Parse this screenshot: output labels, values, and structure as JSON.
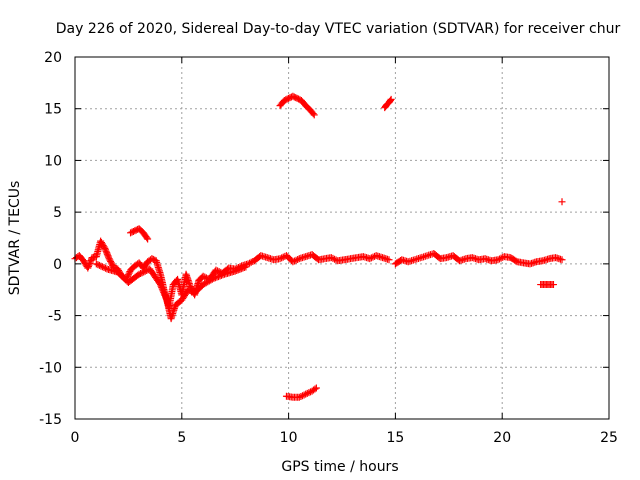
{
  "chart_data": {
    "type": "scatter",
    "title": "Day 226 of 2020, Sidereal Day-to-day VTEC variation (SDTVAR) for receiver chur",
    "xlabel": "GPS time / hours",
    "ylabel": "SDTVAR / TECUs",
    "xlim": [
      0,
      25
    ],
    "ylim": [
      -15,
      20
    ],
    "xticks": [
      0,
      5,
      10,
      15,
      20,
      25
    ],
    "yticks": [
      -15,
      -10,
      -5,
      0,
      5,
      10,
      15,
      20
    ],
    "xtick_labels": [
      "0",
      "5",
      "10",
      "15",
      "20",
      "25"
    ],
    "ytick_labels": [
      "-15",
      "-10",
      "-5",
      "0",
      "5",
      "10",
      "15",
      "20"
    ],
    "grid": true,
    "marker": "+",
    "color": "#ff0000",
    "series": [
      {
        "name": "main_track",
        "x": [
          0.0,
          0.2,
          0.4,
          0.6,
          0.8,
          1.0,
          1.2,
          1.4,
          1.6,
          1.8,
          2.0,
          2.2,
          2.4,
          2.6,
          2.8,
          3.0,
          3.2,
          3.4,
          3.6,
          3.8,
          4.0,
          4.2,
          4.4,
          4.6,
          4.8,
          5.0,
          5.2,
          5.4,
          5.6,
          5.8,
          6.0,
          6.3,
          6.6,
          6.9,
          7.2,
          7.5,
          7.8,
          8.1,
          8.4,
          8.7,
          9.0,
          9.3,
          9.6,
          9.9,
          10.2,
          10.5,
          10.8,
          11.1,
          11.4,
          11.7,
          12.0,
          12.3,
          12.6,
          12.9,
          13.2,
          13.5,
          13.8,
          14.1,
          14.4,
          14.7
        ],
        "y": [
          0.5,
          0.8,
          0.3,
          -0.4,
          0.6,
          0.7,
          2.2,
          1.5,
          0.5,
          -0.3,
          -0.5,
          -1.2,
          -1.5,
          -0.6,
          -0.2,
          0.1,
          -0.4,
          0.2,
          0.5,
          0.3,
          -1.0,
          -2.8,
          -4.2,
          -2.0,
          -1.5,
          -3.0,
          -1.0,
          -2.2,
          -3.0,
          -1.6,
          -1.2,
          -1.5,
          -0.6,
          -0.9,
          -0.4,
          -0.5,
          -0.2,
          0.0,
          0.3,
          0.8,
          0.6,
          0.4,
          0.5,
          0.8,
          0.2,
          0.5,
          0.7,
          0.9,
          0.4,
          0.5,
          0.6,
          0.3,
          0.4,
          0.5,
          0.6,
          0.7,
          0.5,
          0.8,
          0.6,
          0.4
        ]
      },
      {
        "name": "lower_branch",
        "x": [
          1.0,
          1.5,
          2.0,
          2.5,
          3.0,
          3.5,
          4.0,
          4.3,
          4.5,
          4.7,
          5.0,
          5.3,
          5.6,
          6.0,
          6.5,
          7.0,
          7.5,
          8.0
        ],
        "y": [
          0.0,
          -0.5,
          -0.8,
          -1.8,
          -1.0,
          -0.5,
          -2.0,
          -3.5,
          -5.3,
          -4.0,
          -3.5,
          -2.5,
          -2.8,
          -2.0,
          -1.4,
          -1.0,
          -0.7,
          -0.3
        ]
      },
      {
        "name": "afternoon_track",
        "x": [
          15.0,
          15.3,
          15.6,
          16.8,
          17.1,
          17.4,
          17.7,
          18.0,
          18.3,
          18.6,
          18.9,
          19.2,
          19.5,
          19.8,
          20.1,
          20.4,
          20.7,
          21.0,
          21.3,
          21.6,
          21.9,
          22.2,
          22.5,
          22.8
        ],
        "y": [
          0.0,
          0.4,
          0.2,
          1.0,
          0.5,
          0.6,
          0.8,
          0.3,
          0.5,
          0.6,
          0.4,
          0.5,
          0.3,
          0.4,
          0.7,
          0.6,
          0.2,
          0.1,
          0.0,
          0.2,
          0.3,
          0.5,
          0.6,
          0.4
        ]
      },
      {
        "name": "arc_3h",
        "x": [
          2.6,
          2.8,
          3.0,
          3.2,
          3.4
        ],
        "y": [
          3.0,
          3.2,
          3.4,
          3.0,
          2.4
        ]
      },
      {
        "name": "arc_upper_10h",
        "x": [
          9.6,
          9.8,
          10.0,
          10.2,
          10.4,
          10.6,
          10.8,
          11.0,
          11.2
        ],
        "y": [
          15.3,
          15.8,
          16.0,
          16.2,
          16.0,
          15.8,
          15.3,
          14.9,
          14.4
        ]
      },
      {
        "name": "arc_upper_14h",
        "x": [
          14.5,
          14.6,
          14.7,
          14.8
        ],
        "y": [
          15.1,
          15.4,
          15.6,
          15.9
        ]
      },
      {
        "name": "arc_lower_10h",
        "x": [
          9.9,
          10.2,
          10.5,
          10.8,
          11.1,
          11.3
        ],
        "y": [
          -12.8,
          -12.9,
          -12.9,
          -12.6,
          -12.3,
          -12.0
        ]
      },
      {
        "name": "segment_22h",
        "x": [
          21.8,
          22.0,
          22.2,
          22.4
        ],
        "y": [
          -2.0,
          -2.0,
          -2.0,
          -2.0
        ]
      },
      {
        "name": "point_22h",
        "x": [
          22.8
        ],
        "y": [
          6.0
        ]
      }
    ]
  }
}
